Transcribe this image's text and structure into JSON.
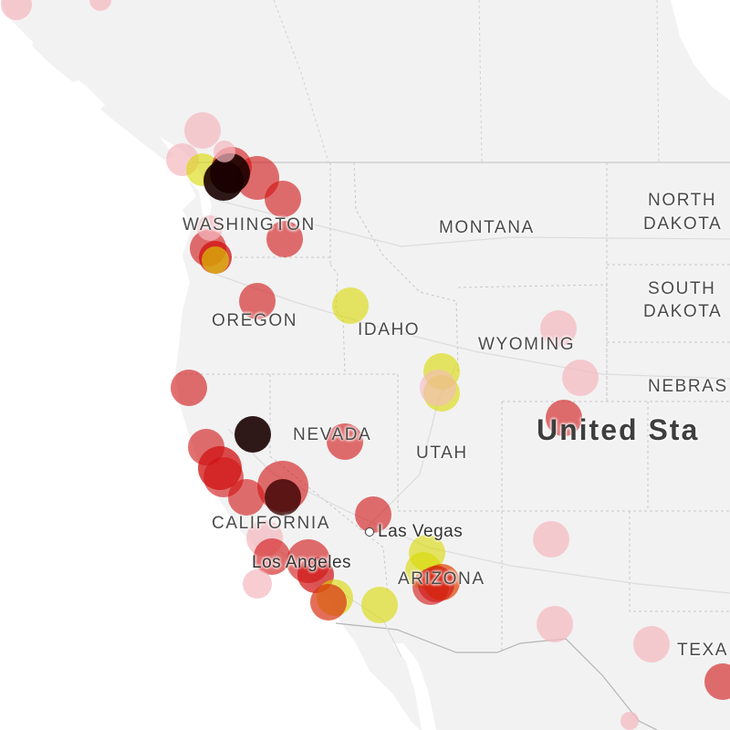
{
  "map": {
    "labels": {
      "washington": "WASHINGTON",
      "oregon": "OREGON",
      "california": "CALIFORNIA",
      "nevada": "NEVADA",
      "idaho": "IDAHO",
      "montana": "MONTANA",
      "wyoming": "WYOMING",
      "utah": "UTAH",
      "arizona": "ARIZONA",
      "north_dakota_1": "NORTH",
      "north_dakota_2": "DAKOTA",
      "south_dakota_1": "SOUTH",
      "south_dakota_2": "DAKOTA",
      "nebraska": "NEBRAS",
      "texas": "TEXA",
      "country": "United Sta",
      "las_vegas": "Las Vegas",
      "los_angeles": "Los Angeles"
    },
    "colors": {
      "land": "#f2f2f2",
      "water": "#ffffff",
      "border": "#c8c8c8",
      "road": "#dcdcdc"
    },
    "markers": [
      {
        "color": "#f5b8bf",
        "opacity": 0.7
      },
      {
        "color": "#f5b8bf",
        "opacity": 0.7
      },
      {
        "color": "#f5b8bf",
        "opacity": 0.7
      },
      {
        "color": "#d8d800",
        "opacity": 0.6
      },
      {
        "color": "#d01010",
        "opacity": 0.6
      },
      {
        "color": "#d01010",
        "opacity": 0.6
      },
      {
        "color": "#1a0000",
        "opacity": 0.9
      },
      {
        "color": "#1a0000",
        "opacity": 0.9
      },
      {
        "color": "#d01010",
        "opacity": 0.6
      },
      {
        "color": "#d01010",
        "opacity": 0.6
      },
      {
        "color": "#d01010",
        "opacity": 0.6
      },
      {
        "color": "#d01010",
        "opacity": 0.75
      },
      {
        "color": "#d8d800",
        "opacity": 0.6
      },
      {
        "color": "#d01010",
        "opacity": 0.6
      },
      {
        "color": "#d8d800",
        "opacity": 0.6
      },
      {
        "color": "#f5b8bf",
        "opacity": 0.7
      },
      {
        "color": "#f5b8bf",
        "opacity": 0.7
      },
      {
        "color": "#d8d800",
        "opacity": 0.6
      },
      {
        "color": "#d8d800",
        "opacity": 0.6
      },
      {
        "color": "#f5b8bf",
        "opacity": 0.6
      },
      {
        "color": "#d01010",
        "opacity": 0.6
      },
      {
        "color": "#d01010",
        "opacity": 0.6
      },
      {
        "color": "#1a0000",
        "opacity": 0.9
      },
      {
        "color": "#d01010",
        "opacity": 0.6
      },
      {
        "color": "#d01010",
        "opacity": 0.6
      },
      {
        "color": "#d01010",
        "opacity": 0.75
      },
      {
        "color": "#d01010",
        "opacity": 0.6
      },
      {
        "color": "#d01010",
        "opacity": 0.6
      },
      {
        "color": "#d01010",
        "opacity": 0.6
      },
      {
        "color": "#3a0000",
        "opacity": 0.8
      },
      {
        "color": "#d01010",
        "opacity": 0.6
      },
      {
        "color": "#f5b8bf",
        "opacity": 0.7
      },
      {
        "color": "#f5b8bf",
        "opacity": 0.7
      },
      {
        "color": "#d01010",
        "opacity": 0.6
      },
      {
        "color": "#d01010",
        "opacity": 0.6
      },
      {
        "color": "#d01010",
        "opacity": 0.7
      },
      {
        "color": "#d8d800",
        "opacity": 0.6
      },
      {
        "color": "#d8300f",
        "opacity": 0.7
      },
      {
        "color": "#d8d800",
        "opacity": 0.6
      },
      {
        "color": "#d8d800",
        "opacity": 0.6
      },
      {
        "color": "#d8d800",
        "opacity": 0.6
      },
      {
        "color": "#d01010",
        "opacity": 0.6
      },
      {
        "color": "#e04000",
        "opacity": 0.7
      },
      {
        "color": "#d01010",
        "opacity": 0.6
      },
      {
        "color": "#f5b8bf",
        "opacity": 0.7
      },
      {
        "color": "#f5b8bf",
        "opacity": 0.7
      },
      {
        "color": "#f5b8bf",
        "opacity": 0.7
      },
      {
        "color": "#d01010",
        "opacity": 0.6
      },
      {
        "color": "#f5b8bf",
        "opacity": 0.7
      },
      {
        "color": "#f5b8bf",
        "opacity": 0.7
      },
      {
        "color": "#f5b8bf",
        "opacity": 0.7
      },
      {
        "color": "#f5b8bf",
        "opacity": 0.7
      },
      {
        "color": "#d01010",
        "opacity": 0.6
      }
    ]
  }
}
